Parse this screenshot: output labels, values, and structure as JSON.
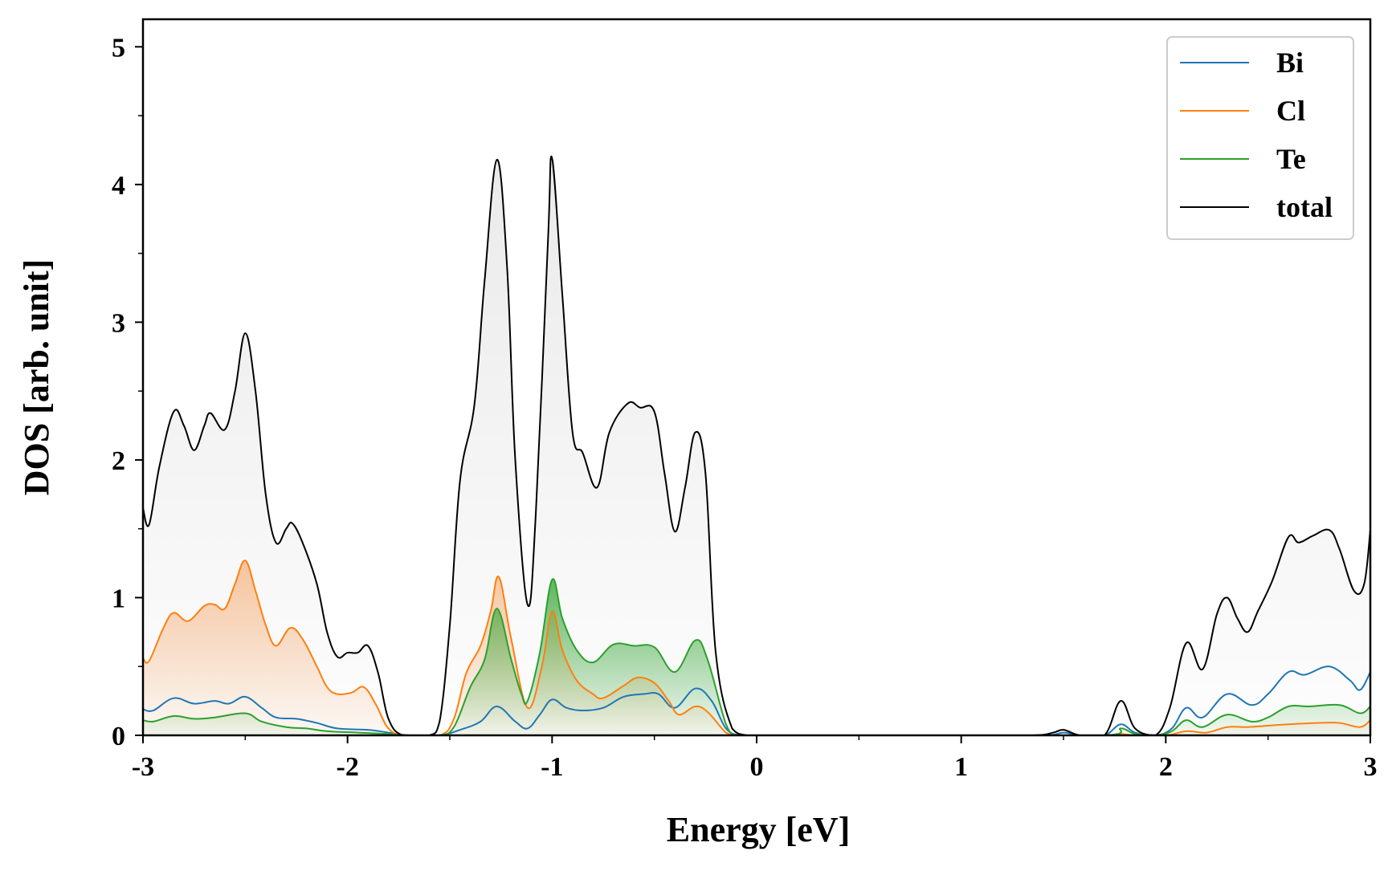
{
  "chart_data": {
    "type": "line",
    "title": "",
    "xlabel": "Energy [eV]",
    "ylabel": "DOS [arb. unit]",
    "xlim": [
      -3,
      3
    ],
    "ylim": [
      0,
      5.2
    ],
    "x_ticks": [
      -3,
      -2,
      -1,
      0,
      1,
      2,
      3
    ],
    "x_tick_labels": [
      "-3",
      "-2",
      "-1",
      "0",
      "1",
      "2",
      "3"
    ],
    "y_ticks": [
      0,
      1,
      2,
      3,
      4,
      5
    ],
    "y_tick_labels": [
      "0",
      "1",
      "2",
      "3",
      "4",
      "5"
    ],
    "grid": false,
    "legend_position": "top-right",
    "filled_areas": true,
    "series": [
      {
        "name": "Bi",
        "color": "#1f77b4",
        "points": [
          [
            -3.0,
            0.19
          ],
          [
            -2.95,
            0.18
          ],
          [
            -2.85,
            0.27
          ],
          [
            -2.75,
            0.23
          ],
          [
            -2.65,
            0.25
          ],
          [
            -2.58,
            0.23
          ],
          [
            -2.5,
            0.28
          ],
          [
            -2.42,
            0.2
          ],
          [
            -2.35,
            0.13
          ],
          [
            -2.25,
            0.12
          ],
          [
            -2.15,
            0.09
          ],
          [
            -2.05,
            0.05
          ],
          [
            -1.9,
            0.04
          ],
          [
            -1.8,
            0.02
          ],
          [
            -1.7,
            0.0
          ],
          [
            -1.55,
            0.0
          ],
          [
            -1.45,
            0.04
          ],
          [
            -1.35,
            0.1
          ],
          [
            -1.27,
            0.21
          ],
          [
            -1.18,
            0.1
          ],
          [
            -1.12,
            0.05
          ],
          [
            -1.06,
            0.15
          ],
          [
            -1.0,
            0.26
          ],
          [
            -0.93,
            0.2
          ],
          [
            -0.85,
            0.18
          ],
          [
            -0.75,
            0.2
          ],
          [
            -0.65,
            0.28
          ],
          [
            -0.55,
            0.3
          ],
          [
            -0.48,
            0.3
          ],
          [
            -0.4,
            0.2
          ],
          [
            -0.3,
            0.34
          ],
          [
            -0.22,
            0.25
          ],
          [
            -0.15,
            0.05
          ],
          [
            -0.08,
            0.0
          ],
          [
            0.0,
            0.0
          ],
          [
            1.0,
            0.0
          ],
          [
            1.4,
            0.0
          ],
          [
            1.5,
            0.02
          ],
          [
            1.58,
            0.0
          ],
          [
            1.7,
            0.0
          ],
          [
            1.78,
            0.08
          ],
          [
            1.85,
            0.02
          ],
          [
            1.95,
            0.0
          ],
          [
            2.03,
            0.05
          ],
          [
            2.1,
            0.2
          ],
          [
            2.18,
            0.13
          ],
          [
            2.3,
            0.3
          ],
          [
            2.42,
            0.22
          ],
          [
            2.5,
            0.3
          ],
          [
            2.6,
            0.46
          ],
          [
            2.68,
            0.44
          ],
          [
            2.8,
            0.5
          ],
          [
            2.9,
            0.4
          ],
          [
            2.95,
            0.33
          ],
          [
            3.0,
            0.46
          ]
        ]
      },
      {
        "name": "Cl",
        "color": "#ff7f0e",
        "points": [
          [
            -3.0,
            0.56
          ],
          [
            -2.97,
            0.54
          ],
          [
            -2.9,
            0.78
          ],
          [
            -2.85,
            0.89
          ],
          [
            -2.78,
            0.83
          ],
          [
            -2.7,
            0.94
          ],
          [
            -2.65,
            0.95
          ],
          [
            -2.6,
            0.92
          ],
          [
            -2.55,
            1.1
          ],
          [
            -2.5,
            1.27
          ],
          [
            -2.45,
            1.05
          ],
          [
            -2.4,
            0.8
          ],
          [
            -2.35,
            0.65
          ],
          [
            -2.28,
            0.78
          ],
          [
            -2.22,
            0.7
          ],
          [
            -2.15,
            0.5
          ],
          [
            -2.1,
            0.35
          ],
          [
            -2.05,
            0.3
          ],
          [
            -1.98,
            0.31
          ],
          [
            -1.92,
            0.35
          ],
          [
            -1.86,
            0.22
          ],
          [
            -1.8,
            0.05
          ],
          [
            -1.72,
            0.0
          ],
          [
            -1.55,
            0.0
          ],
          [
            -1.48,
            0.12
          ],
          [
            -1.42,
            0.45
          ],
          [
            -1.35,
            0.65
          ],
          [
            -1.3,
            0.9
          ],
          [
            -1.26,
            1.15
          ],
          [
            -1.2,
            0.7
          ],
          [
            -1.12,
            0.2
          ],
          [
            -1.05,
            0.5
          ],
          [
            -1.0,
            0.9
          ],
          [
            -0.95,
            0.62
          ],
          [
            -0.88,
            0.4
          ],
          [
            -0.8,
            0.3
          ],
          [
            -0.75,
            0.27
          ],
          [
            -0.65,
            0.36
          ],
          [
            -0.58,
            0.42
          ],
          [
            -0.5,
            0.38
          ],
          [
            -0.43,
            0.25
          ],
          [
            -0.38,
            0.15
          ],
          [
            -0.3,
            0.21
          ],
          [
            -0.24,
            0.17
          ],
          [
            -0.15,
            0.02
          ],
          [
            -0.1,
            0.0
          ],
          [
            0.0,
            0.0
          ],
          [
            1.0,
            0.0
          ],
          [
            1.7,
            0.0
          ],
          [
            1.78,
            0.01
          ],
          [
            1.85,
            0.0
          ],
          [
            2.0,
            0.0
          ],
          [
            2.1,
            0.03
          ],
          [
            2.2,
            0.02
          ],
          [
            2.3,
            0.06
          ],
          [
            2.4,
            0.06
          ],
          [
            2.5,
            0.07
          ],
          [
            2.6,
            0.08
          ],
          [
            2.75,
            0.09
          ],
          [
            2.85,
            0.09
          ],
          [
            2.95,
            0.06
          ],
          [
            3.0,
            0.11
          ]
        ]
      },
      {
        "name": "Te",
        "color": "#2ca02c",
        "points": [
          [
            -3.0,
            0.11
          ],
          [
            -2.95,
            0.1
          ],
          [
            -2.85,
            0.14
          ],
          [
            -2.75,
            0.12
          ],
          [
            -2.65,
            0.13
          ],
          [
            -2.5,
            0.16
          ],
          [
            -2.42,
            0.1
          ],
          [
            -2.3,
            0.06
          ],
          [
            -2.2,
            0.05
          ],
          [
            -2.1,
            0.03
          ],
          [
            -1.95,
            0.02
          ],
          [
            -1.8,
            0.01
          ],
          [
            -1.7,
            0.0
          ],
          [
            -1.55,
            0.0
          ],
          [
            -1.48,
            0.06
          ],
          [
            -1.4,
            0.35
          ],
          [
            -1.33,
            0.55
          ],
          [
            -1.27,
            0.92
          ],
          [
            -1.2,
            0.55
          ],
          [
            -1.15,
            0.3
          ],
          [
            -1.12,
            0.25
          ],
          [
            -1.06,
            0.6
          ],
          [
            -1.0,
            1.13
          ],
          [
            -0.95,
            0.85
          ],
          [
            -0.88,
            0.62
          ],
          [
            -0.8,
            0.53
          ],
          [
            -0.7,
            0.66
          ],
          [
            -0.6,
            0.65
          ],
          [
            -0.5,
            0.64
          ],
          [
            -0.4,
            0.46
          ],
          [
            -0.3,
            0.69
          ],
          [
            -0.24,
            0.55
          ],
          [
            -0.15,
            0.08
          ],
          [
            -0.1,
            0.0
          ],
          [
            0.0,
            0.0
          ],
          [
            1.0,
            0.0
          ],
          [
            1.7,
            0.0
          ],
          [
            1.78,
            0.05
          ],
          [
            1.85,
            0.01
          ],
          [
            1.95,
            0.0
          ],
          [
            2.03,
            0.03
          ],
          [
            2.1,
            0.11
          ],
          [
            2.18,
            0.06
          ],
          [
            2.3,
            0.15
          ],
          [
            2.42,
            0.1
          ],
          [
            2.5,
            0.13
          ],
          [
            2.6,
            0.21
          ],
          [
            2.7,
            0.21
          ],
          [
            2.85,
            0.22
          ],
          [
            2.95,
            0.16
          ],
          [
            3.0,
            0.21
          ]
        ]
      },
      {
        "name": "total",
        "color": "#000000",
        "points": [
          [
            -3.0,
            1.65
          ],
          [
            -2.97,
            1.53
          ],
          [
            -2.92,
            1.95
          ],
          [
            -2.85,
            2.35
          ],
          [
            -2.8,
            2.25
          ],
          [
            -2.75,
            2.07
          ],
          [
            -2.7,
            2.25
          ],
          [
            -2.67,
            2.34
          ],
          [
            -2.6,
            2.22
          ],
          [
            -2.55,
            2.5
          ],
          [
            -2.5,
            2.92
          ],
          [
            -2.45,
            2.5
          ],
          [
            -2.4,
            1.75
          ],
          [
            -2.35,
            1.4
          ],
          [
            -2.3,
            1.5
          ],
          [
            -2.27,
            1.54
          ],
          [
            -2.22,
            1.4
          ],
          [
            -2.15,
            1.1
          ],
          [
            -2.1,
            0.75
          ],
          [
            -2.05,
            0.57
          ],
          [
            -2.0,
            0.6
          ],
          [
            -1.95,
            0.6
          ],
          [
            -1.9,
            0.65
          ],
          [
            -1.85,
            0.45
          ],
          [
            -1.8,
            0.12
          ],
          [
            -1.73,
            0.0
          ],
          [
            -1.6,
            0.0
          ],
          [
            -1.55,
            0.1
          ],
          [
            -1.5,
            0.8
          ],
          [
            -1.45,
            1.85
          ],
          [
            -1.38,
            2.4
          ],
          [
            -1.33,
            3.3
          ],
          [
            -1.27,
            4.18
          ],
          [
            -1.22,
            3.4
          ],
          [
            -1.18,
            2.0
          ],
          [
            -1.12,
            0.95
          ],
          [
            -1.08,
            1.6
          ],
          [
            -1.02,
            3.6
          ],
          [
            -1.0,
            4.19
          ],
          [
            -0.95,
            3.2
          ],
          [
            -0.9,
            2.2
          ],
          [
            -0.85,
            2.05
          ],
          [
            -0.78,
            1.8
          ],
          [
            -0.72,
            2.2
          ],
          [
            -0.63,
            2.41
          ],
          [
            -0.57,
            2.38
          ],
          [
            -0.5,
            2.35
          ],
          [
            -0.45,
            1.9
          ],
          [
            -0.4,
            1.48
          ],
          [
            -0.35,
            1.8
          ],
          [
            -0.3,
            2.2
          ],
          [
            -0.25,
            1.9
          ],
          [
            -0.2,
            0.6
          ],
          [
            -0.12,
            0.05
          ],
          [
            -0.05,
            0.0
          ],
          [
            0.0,
            0.0
          ],
          [
            1.0,
            0.0
          ],
          [
            1.35,
            0.0
          ],
          [
            1.45,
            0.02
          ],
          [
            1.5,
            0.04
          ],
          [
            1.58,
            0.0
          ],
          [
            1.7,
            0.0
          ],
          [
            1.78,
            0.25
          ],
          [
            1.85,
            0.05
          ],
          [
            1.95,
            0.0
          ],
          [
            2.02,
            0.2
          ],
          [
            2.1,
            0.67
          ],
          [
            2.18,
            0.48
          ],
          [
            2.25,
            0.88
          ],
          [
            2.3,
            1.0
          ],
          [
            2.35,
            0.85
          ],
          [
            2.4,
            0.75
          ],
          [
            2.45,
            0.9
          ],
          [
            2.52,
            1.12
          ],
          [
            2.6,
            1.44
          ],
          [
            2.65,
            1.4
          ],
          [
            2.72,
            1.45
          ],
          [
            2.8,
            1.49
          ],
          [
            2.85,
            1.35
          ],
          [
            2.92,
            1.05
          ],
          [
            2.97,
            1.1
          ],
          [
            3.0,
            1.49
          ]
        ]
      }
    ]
  }
}
